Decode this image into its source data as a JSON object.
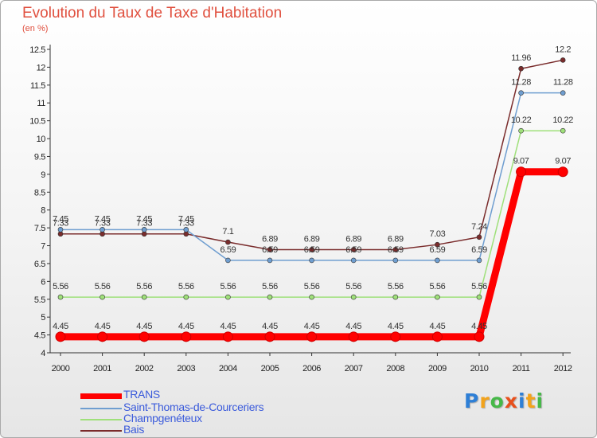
{
  "title": "Evolution du Taux de Taxe d'Habitation",
  "subtitle": "(en %)",
  "chart_data": {
    "type": "line",
    "title": "Evolution du Taux de Taxe d'Habitation",
    "ylabel": "(en %)",
    "xlabel": "",
    "x": [
      "2000",
      "2001",
      "2002",
      "2003",
      "2004",
      "2005",
      "2006",
      "2007",
      "2008",
      "2009",
      "2010",
      "2011",
      "2012"
    ],
    "ylim": [
      4,
      12.5
    ],
    "yticks": [
      "4",
      "4.5",
      "5",
      "5.5",
      "6",
      "6.5",
      "7",
      "7.5",
      "8",
      "8.5",
      "9",
      "9.5",
      "10",
      "10.5",
      "11",
      "11.5",
      "12",
      "12.5"
    ],
    "grid": false,
    "legend_position": "bottom-left",
    "series": [
      {
        "name": "TRANS",
        "color": "#ff0000",
        "values": [
          4.45,
          4.45,
          4.45,
          4.45,
          4.45,
          4.45,
          4.45,
          4.45,
          4.45,
          4.45,
          4.45,
          9.07,
          9.07
        ],
        "labels": [
          "4.45",
          "4.45",
          "4.45",
          "4.45",
          "4.45",
          "4.45",
          "4.45",
          "4.45",
          "4.45",
          "4.45",
          "4.45",
          "9.07",
          "9.07"
        ]
      },
      {
        "name": "Saint-Thomas-de-Courceriers",
        "color": "#6f9ed0",
        "values": [
          7.45,
          7.45,
          7.45,
          7.45,
          6.59,
          6.59,
          6.59,
          6.59,
          6.59,
          6.59,
          6.59,
          11.28,
          11.28
        ],
        "labels": [
          "7.45",
          "7.45",
          "7.45",
          "7.45",
          "6.59",
          "6.59",
          "6.59",
          "6.59",
          "6.59",
          "6.59",
          "6.59",
          "11.28",
          "11.28"
        ]
      },
      {
        "name": "Champgenéteux",
        "color": "#9fe07a",
        "values": [
          5.56,
          5.56,
          5.56,
          5.56,
          5.56,
          5.56,
          5.56,
          5.56,
          5.56,
          5.56,
          5.56,
          10.22,
          10.22
        ],
        "labels": [
          "5.56",
          "5.56",
          "5.56",
          "5.56",
          "5.56",
          "5.56",
          "5.56",
          "5.56",
          "5.56",
          "5.56",
          "5.56",
          "10.22",
          "10.22"
        ]
      },
      {
        "name": "Bais",
        "color": "#7a2c2c",
        "values": [
          7.33,
          7.33,
          7.33,
          7.33,
          7.1,
          6.89,
          6.89,
          6.89,
          6.89,
          7.03,
          7.24,
          11.96,
          12.2
        ],
        "labels": [
          "7.33",
          "7.33",
          "7.33",
          "7.33",
          "7.1",
          "6.89",
          "6.89",
          "6.89",
          "6.89",
          "7.03",
          "7.24",
          "11.96",
          "12.2"
        ]
      }
    ]
  },
  "legend": [
    {
      "label": "TRANS",
      "color": "#ff0000"
    },
    {
      "label": "Saint-Thomas-de-Courceriers",
      "color": "#6f9ed0"
    },
    {
      "label": "Champgenéteux",
      "color": "#9fe07a"
    },
    {
      "label": "Bais",
      "color": "#7a2c2c"
    }
  ],
  "logo": {
    "letters": [
      "P",
      "r",
      "o",
      "x",
      "i",
      "t",
      "i"
    ],
    "colors": [
      "#2e7fd6",
      "#f2a31c",
      "#46b848",
      "#e8501c",
      "#2e7fd6",
      "#f2a31c",
      "#46b848"
    ]
  }
}
